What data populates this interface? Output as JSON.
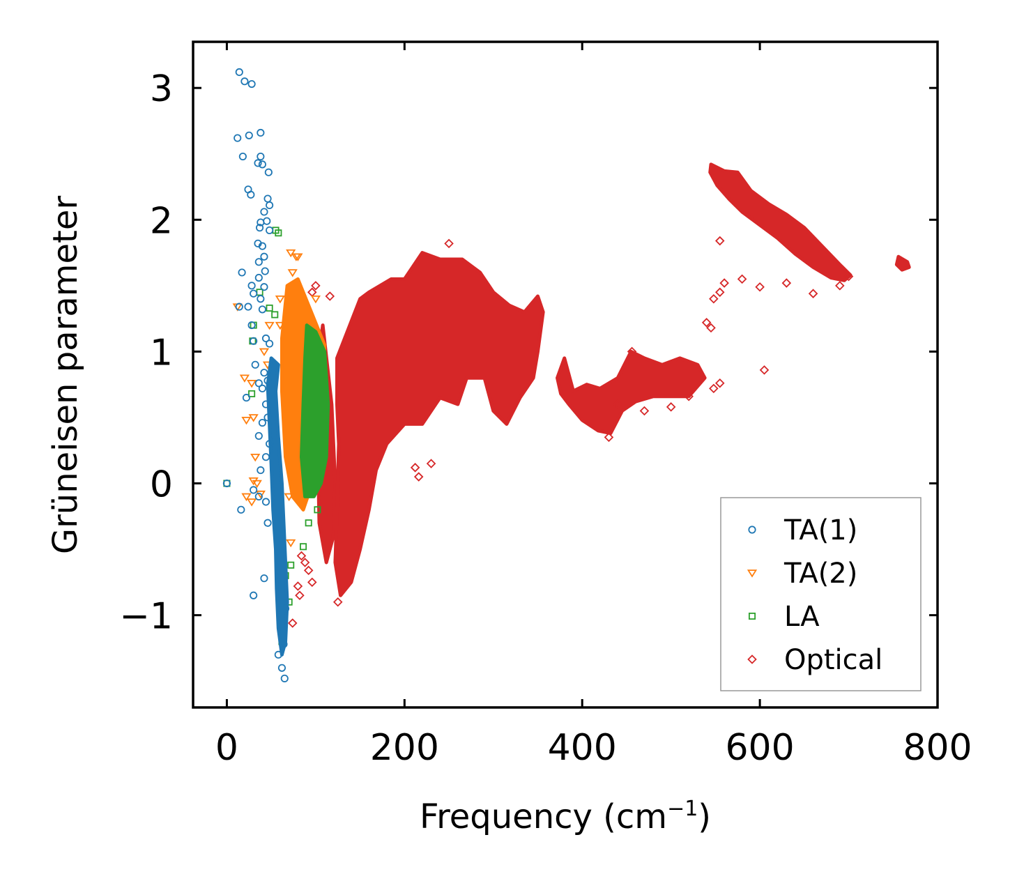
{
  "chart_data": {
    "type": "scatter",
    "title": "",
    "xlabel": "Frequency (cm",
    "xlabel_superscript": "−1",
    "xlabel_suffix": ")",
    "ylabel": "Grüneisen parameter",
    "xlim": [
      -38,
      800
    ],
    "ylim": [
      -1.7,
      3.35
    ],
    "xticks": [
      0,
      200,
      400,
      600,
      800
    ],
    "xtick_labels": [
      "0",
      "200",
      "400",
      "600",
      "800"
    ],
    "yticks": [
      -1,
      0,
      1,
      2,
      3
    ],
    "ytick_labels": [
      "−1",
      "0",
      "1",
      "2",
      "3"
    ],
    "grid": false,
    "legend_position": "lower-right",
    "series": [
      {
        "name": "TA(1)",
        "marker": "circle",
        "color": "#1f77b4",
        "points": [
          [
            0,
            0.0
          ],
          [
            14,
            3.12
          ],
          [
            20,
            3.05
          ],
          [
            28,
            3.03
          ],
          [
            12,
            2.62
          ],
          [
            25,
            2.64
          ],
          [
            38,
            2.66
          ],
          [
            18,
            2.48
          ],
          [
            38,
            2.48
          ],
          [
            35,
            2.43
          ],
          [
            40,
            2.42
          ],
          [
            47,
            2.36
          ],
          [
            24,
            2.23
          ],
          [
            27,
            2.19
          ],
          [
            46,
            2.16
          ],
          [
            48,
            2.11
          ],
          [
            42,
            2.06
          ],
          [
            45,
            1.99
          ],
          [
            38,
            1.98
          ],
          [
            48,
            1.92
          ],
          [
            37,
            1.94
          ],
          [
            35,
            1.82
          ],
          [
            40,
            1.8
          ],
          [
            42,
            1.72
          ],
          [
            36,
            1.68
          ],
          [
            17,
            1.6
          ],
          [
            43,
            1.61
          ],
          [
            36,
            1.56
          ],
          [
            28,
            1.5
          ],
          [
            42,
            1.49
          ],
          [
            30,
            1.44
          ],
          [
            38,
            1.4
          ],
          [
            24,
            1.34
          ],
          [
            14,
            1.34
          ],
          [
            40,
            1.32
          ],
          [
            28,
            1.2
          ],
          [
            30,
            1.08
          ],
          [
            44,
            1.1
          ],
          [
            48,
            1.06
          ],
          [
            32,
            0.9
          ],
          [
            42,
            0.84
          ],
          [
            46,
            0.78
          ],
          [
            36,
            0.76
          ],
          [
            40,
            0.72
          ],
          [
            22,
            0.65
          ],
          [
            44,
            0.6
          ],
          [
            46,
            0.5
          ],
          [
            40,
            0.46
          ],
          [
            36,
            0.36
          ],
          [
            48,
            0.3
          ],
          [
            44,
            0.2
          ],
          [
            38,
            0.1
          ],
          [
            30,
            -0.05
          ],
          [
            36,
            -0.1
          ],
          [
            16,
            -0.2
          ],
          [
            44,
            -0.14
          ],
          [
            46,
            -0.3
          ],
          [
            42,
            -0.72
          ],
          [
            30,
            -0.85
          ],
          [
            65,
            -1.48
          ],
          [
            62,
            -1.4
          ],
          [
            58,
            -1.3
          ],
          [
            64,
            -1.22
          ],
          [
            66,
            -0.95
          ]
        ],
        "dense_band": [
          [
            50,
            0.95
          ],
          [
            58,
            0.9
          ],
          [
            55,
            0.7
          ],
          [
            58,
            0.35
          ],
          [
            62,
            0.0
          ],
          [
            64,
            -0.3
          ],
          [
            66,
            -0.6
          ],
          [
            68,
            -0.9
          ],
          [
            66,
            -1.2
          ],
          [
            62,
            -1.3
          ],
          [
            58,
            -1.1
          ],
          [
            56,
            -0.8
          ],
          [
            55,
            -0.5
          ],
          [
            52,
            -0.2
          ],
          [
            50,
            0.15
          ],
          [
            48,
            0.45
          ],
          [
            46,
            0.75
          ]
        ]
      },
      {
        "name": "TA(2)",
        "marker": "triangle-down",
        "color": "#ff7f0e",
        "points": [
          [
            12,
            1.34
          ],
          [
            20,
            0.8
          ],
          [
            22,
            0.48
          ],
          [
            28,
            0.76
          ],
          [
            30,
            0.5
          ],
          [
            32,
            0.2
          ],
          [
            30,
            0.02
          ],
          [
            34,
            0.0
          ],
          [
            38,
            -0.08
          ],
          [
            22,
            -0.1
          ],
          [
            28,
            -0.14
          ],
          [
            46,
            0.9
          ],
          [
            72,
            1.75
          ],
          [
            78,
            1.72
          ],
          [
            80,
            1.72
          ],
          [
            74,
            1.6
          ],
          [
            60,
            1.4
          ],
          [
            60,
            1.2
          ],
          [
            42,
            1.0
          ],
          [
            48,
            1.2
          ],
          [
            70,
            -0.1
          ],
          [
            72,
            -0.45
          ],
          [
            100,
            1.4
          ],
          [
            94,
            1.2
          ]
        ],
        "dense_band": [
          [
            68,
            1.5
          ],
          [
            80,
            1.55
          ],
          [
            95,
            1.3
          ],
          [
            110,
            1.05
          ],
          [
            108,
            0.6
          ],
          [
            102,
            0.2
          ],
          [
            96,
            0.0
          ],
          [
            86,
            -0.2
          ],
          [
            74,
            -0.1
          ],
          [
            66,
            0.2
          ],
          [
            62,
            0.7
          ],
          [
            62,
            1.1
          ]
        ]
      },
      {
        "name": "LA",
        "marker": "square",
        "color": "#2ca02c",
        "points": [
          [
            0,
            0.0
          ],
          [
            30,
            1.2
          ],
          [
            29,
            1.08
          ],
          [
            28,
            0.68
          ],
          [
            37,
            1.45
          ],
          [
            55,
            1.92
          ],
          [
            58,
            1.9
          ],
          [
            48,
            1.33
          ],
          [
            54,
            1.28
          ],
          [
            86,
            -0.48
          ],
          [
            72,
            -0.62
          ],
          [
            66,
            -0.7
          ],
          [
            70,
            -0.9
          ],
          [
            62,
            -1.2
          ],
          [
            102,
            -0.2
          ],
          [
            92,
            -0.3
          ]
        ],
        "dense_band": [
          [
            90,
            1.2
          ],
          [
            100,
            1.15
          ],
          [
            110,
            1.0
          ],
          [
            114,
            0.6
          ],
          [
            112,
            0.2
          ],
          [
            106,
            0.0
          ],
          [
            98,
            -0.1
          ],
          [
            88,
            -0.1
          ],
          [
            84,
            0.2
          ],
          [
            86,
            0.6
          ],
          [
            88,
            0.95
          ]
        ]
      },
      {
        "name": "Optical",
        "marker": "diamond",
        "color": "#d62728",
        "points": [
          [
            250,
            1.82
          ],
          [
            605,
            0.86
          ],
          [
            555,
            1.84
          ],
          [
            560,
            1.52
          ],
          [
            555,
            1.45
          ],
          [
            548,
            1.4
          ],
          [
            230,
            0.15
          ],
          [
            216,
            0.05
          ],
          [
            212,
            0.12
          ],
          [
            125,
            -0.9
          ],
          [
            96,
            -0.75
          ],
          [
            92,
            -0.66
          ],
          [
            88,
            -0.6
          ],
          [
            84,
            -0.55
          ],
          [
            82,
            -0.85
          ],
          [
            80,
            -0.78
          ],
          [
            74,
            -1.06
          ],
          [
            100,
            1.5
          ],
          [
            96,
            1.45
          ],
          [
            116,
            1.42
          ],
          [
            700,
            1.57
          ],
          [
            660,
            1.44
          ],
          [
            690,
            1.5
          ],
          [
            630,
            1.52
          ],
          [
            600,
            1.49
          ],
          [
            580,
            1.55
          ],
          [
            545,
            1.18
          ],
          [
            540,
            1.22
          ],
          [
            520,
            0.66
          ],
          [
            555,
            0.76
          ],
          [
            548,
            0.72
          ],
          [
            500,
            0.58
          ],
          [
            470,
            0.55
          ],
          [
            440,
            0.6
          ],
          [
            430,
            0.35
          ],
          [
            456,
            1.0
          ]
        ],
        "clusters": [
          [
            [
              108,
              1.2
            ],
            [
              118,
              0.6
            ],
            [
              122,
              0.0
            ],
            [
              120,
              -0.4
            ],
            [
              112,
              -0.6
            ],
            [
              104,
              -0.3
            ],
            [
              102,
              0.4
            ],
            [
              104,
              1.0
            ]
          ],
          [
            [
              124,
              0.95
            ],
            [
              150,
              1.4
            ],
            [
              160,
              1.45
            ],
            [
              185,
              1.55
            ],
            [
              200,
              1.55
            ],
            [
              220,
              1.75
            ],
            [
              240,
              1.7
            ],
            [
              265,
              1.7
            ],
            [
              285,
              1.6
            ],
            [
              300,
              1.45
            ],
            [
              318,
              1.35
            ],
            [
              335,
              1.3
            ],
            [
              350,
              1.42
            ],
            [
              356,
              1.3
            ],
            [
              350,
              1.0
            ],
            [
              345,
              0.8
            ],
            [
              330,
              0.65
            ],
            [
              315,
              0.45
            ],
            [
              300,
              0.55
            ],
            [
              290,
              0.8
            ],
            [
              270,
              0.8
            ],
            [
              260,
              0.6
            ],
            [
              240,
              0.65
            ],
            [
              220,
              0.45
            ],
            [
              200,
              0.45
            ],
            [
              180,
              0.3
            ],
            [
              168,
              0.1
            ],
            [
              160,
              -0.2
            ],
            [
              150,
              -0.5
            ],
            [
              140,
              -0.75
            ],
            [
              128,
              -0.85
            ],
            [
              122,
              -0.6
            ],
            [
              124,
              -0.2
            ],
            [
              126,
              0.3
            ],
            [
              124,
              0.6
            ]
          ],
          [
            [
              372,
              0.8
            ],
            [
              380,
              0.95
            ],
            [
              390,
              0.7
            ],
            [
              405,
              0.75
            ],
            [
              420,
              0.72
            ],
            [
              440,
              0.8
            ],
            [
              455,
              1.0
            ],
            [
              470,
              0.95
            ],
            [
              490,
              0.9
            ],
            [
              510,
              0.95
            ],
            [
              530,
              0.9
            ],
            [
              538,
              0.8
            ],
            [
              520,
              0.66
            ],
            [
              500,
              0.66
            ],
            [
              480,
              0.66
            ],
            [
              460,
              0.62
            ],
            [
              445,
              0.55
            ],
            [
              432,
              0.38
            ],
            [
              418,
              0.4
            ],
            [
              400,
              0.48
            ],
            [
              385,
              0.6
            ],
            [
              376,
              0.68
            ]
          ],
          [
            [
              545,
              2.42
            ],
            [
              560,
              2.37
            ],
            [
              575,
              2.36
            ],
            [
              590,
              2.22
            ],
            [
              610,
              2.12
            ],
            [
              630,
              2.04
            ],
            [
              650,
              1.94
            ],
            [
              670,
              1.8
            ],
            [
              690,
              1.66
            ],
            [
              702,
              1.58
            ],
            [
              695,
              1.54
            ],
            [
              680,
              1.56
            ],
            [
              660,
              1.64
            ],
            [
              640,
              1.74
            ],
            [
              620,
              1.86
            ],
            [
              600,
              1.96
            ],
            [
              580,
              2.06
            ],
            [
              565,
              2.16
            ],
            [
              552,
              2.26
            ],
            [
              544,
              2.36
            ]
          ],
          [
            [
              756,
              1.72
            ],
            [
              766,
              1.68
            ],
            [
              768,
              1.64
            ],
            [
              760,
              1.62
            ],
            [
              754,
              1.66
            ]
          ]
        ]
      }
    ]
  }
}
